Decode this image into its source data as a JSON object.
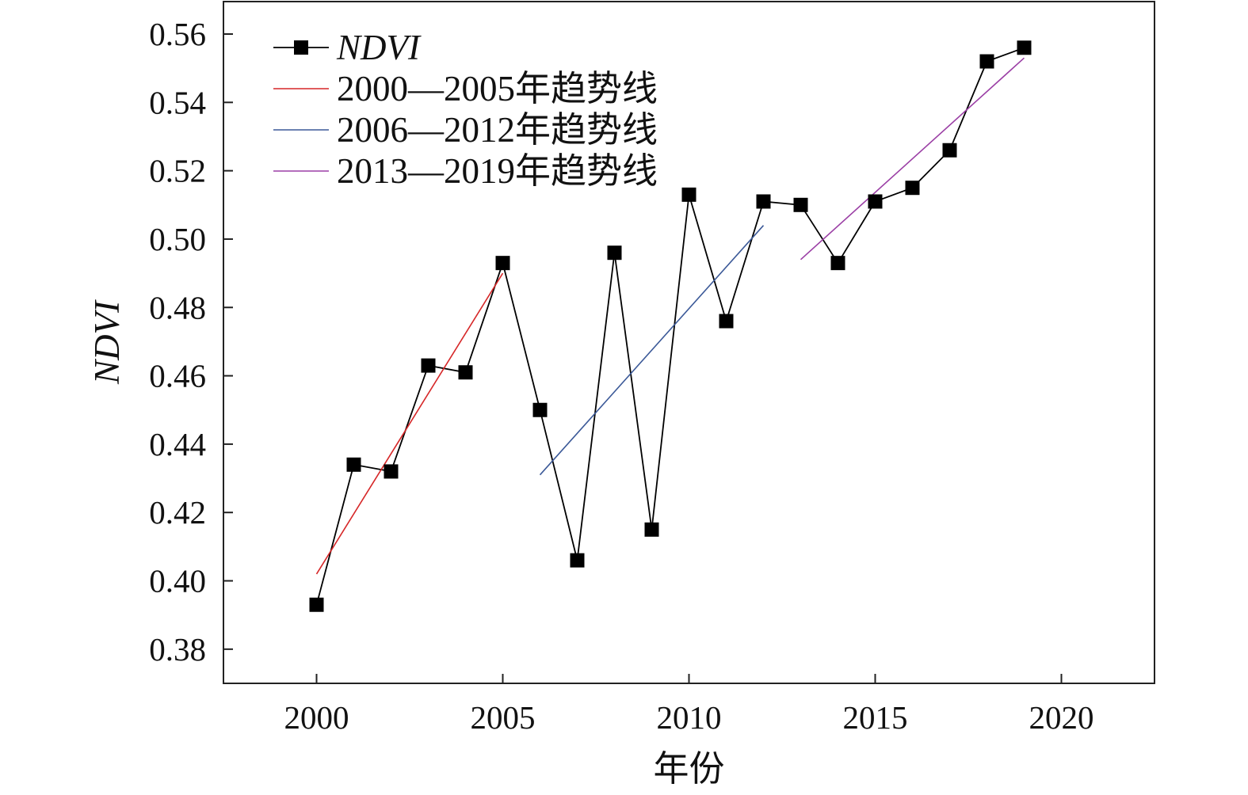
{
  "chart_data": {
    "type": "line",
    "xlabel": "年份",
    "ylabel": "NDVI",
    "xlim": [
      1997.5,
      2022.5
    ],
    "ylim": [
      0.37,
      0.5695
    ],
    "xticks": [
      2000,
      2005,
      2010,
      2015,
      2020
    ],
    "yticks": [
      0.38,
      0.4,
      0.42,
      0.44,
      0.46,
      0.48,
      0.5,
      0.52,
      0.54,
      0.56
    ],
    "grid": false,
    "legend_position": "top-left",
    "series": [
      {
        "name": "NDVI",
        "style": "line-with-square-markers",
        "color": "#000000",
        "points": [
          {
            "x": 2000,
            "y": 0.393
          },
          {
            "x": 2001,
            "y": 0.434
          },
          {
            "x": 2002,
            "y": 0.432
          },
          {
            "x": 2003,
            "y": 0.463
          },
          {
            "x": 2004,
            "y": 0.461
          },
          {
            "x": 2005,
            "y": 0.493
          },
          {
            "x": 2006,
            "y": 0.45
          },
          {
            "x": 2007,
            "y": 0.406
          },
          {
            "x": 2008,
            "y": 0.496
          },
          {
            "x": 2009,
            "y": 0.415
          },
          {
            "x": 2010,
            "y": 0.513
          },
          {
            "x": 2011,
            "y": 0.476
          },
          {
            "x": 2012,
            "y": 0.511
          },
          {
            "x": 2013,
            "y": 0.51
          },
          {
            "x": 2014,
            "y": 0.493
          },
          {
            "x": 2015,
            "y": 0.511
          },
          {
            "x": 2016,
            "y": 0.515
          },
          {
            "x": 2017,
            "y": 0.526
          },
          {
            "x": 2018,
            "y": 0.552
          },
          {
            "x": 2019,
            "y": 0.556
          }
        ]
      },
      {
        "name": "2000—2005年趋势线",
        "style": "line",
        "color": "#d62728",
        "points": [
          {
            "x": 2000,
            "y": 0.402
          },
          {
            "x": 2005,
            "y": 0.49
          }
        ]
      },
      {
        "name": "2006—2012年趋势线",
        "style": "line",
        "color": "#3b5998",
        "points": [
          {
            "x": 2006,
            "y": 0.431
          },
          {
            "x": 2012,
            "y": 0.504
          }
        ]
      },
      {
        "name": "2013—2019年趋势线",
        "style": "line",
        "color": "#9b3fa5",
        "points": [
          {
            "x": 2013,
            "y": 0.494
          },
          {
            "x": 2019,
            "y": 0.553
          }
        ]
      }
    ]
  }
}
